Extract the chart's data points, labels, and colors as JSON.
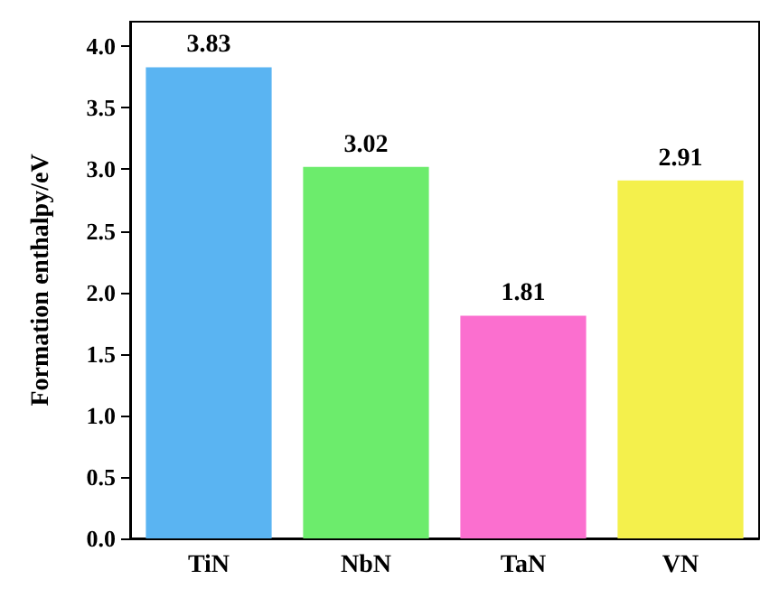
{
  "chart_data": {
    "type": "bar",
    "ylabel": "Formation enthalpy/eV",
    "categories": [
      "TiN",
      "NbN",
      "TaN",
      "VN"
    ],
    "values": [
      3.83,
      3.02,
      1.81,
      2.91
    ],
    "colors": [
      "#5ab4f2",
      "#6cec6c",
      "#fb6fcf",
      "#f4f04c"
    ],
    "ylim": [
      0,
      4.2
    ],
    "yticks": [
      {
        "value": 0,
        "label": "0.0"
      },
      {
        "value": 0.5,
        "label": "0.5"
      },
      {
        "value": 1,
        "label": "1.0"
      },
      {
        "value": 1.5,
        "label": "1.5"
      },
      {
        "value": 2,
        "label": "2.0"
      },
      {
        "value": 2.5,
        "label": "2.5"
      },
      {
        "value": 3,
        "label": "3.0"
      },
      {
        "value": 3.5,
        "label": "3.5"
      },
      {
        "value": 4,
        "label": "4.0"
      }
    ],
    "data_labels": true
  }
}
